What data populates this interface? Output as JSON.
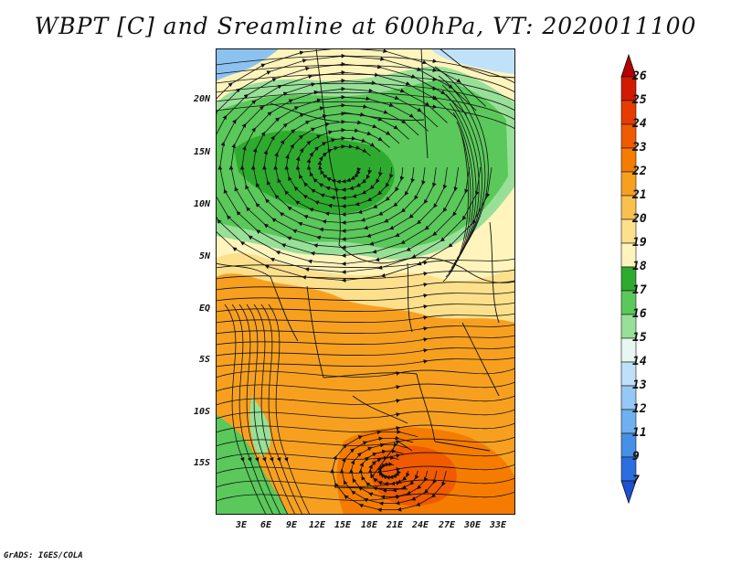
{
  "title": "WBPT [C] and Sreamline at 600hPa, VT: 2020011100",
  "footer": "GrADS: IGES/COLA",
  "lat_labels": [
    "20N",
    "15N",
    "10N",
    "5N",
    "EQ",
    "5S",
    "10S",
    "15S"
  ],
  "lon_labels": [
    "3E",
    "6E",
    "9E",
    "12E",
    "15E",
    "18E",
    "21E",
    "24E",
    "27E",
    "30E",
    "33E"
  ],
  "colorbar": {
    "labels": [
      "26",
      "25",
      "24",
      "23",
      "22",
      "21",
      "20",
      "19",
      "18",
      "17",
      "16",
      "15",
      "14",
      "13",
      "12",
      "11",
      "9",
      "7"
    ],
    "colors": [
      "#b40000",
      "#d21a00",
      "#e63c00",
      "#f05a00",
      "#f57c00",
      "#f7a020",
      "#f9c050",
      "#fce08c",
      "#fff4bc",
      "#2eaa2e",
      "#5ac85a",
      "#98e098",
      "#e6f8f0",
      "#bee0fa",
      "#96c8f5",
      "#6eb0f0",
      "#4690e6",
      "#2a6ee0",
      "#1e50d2"
    ]
  },
  "map": {
    "lon_range": [
      0,
      35
    ],
    "lat_range": [
      -20,
      24.5
    ],
    "field": "WBPT",
    "units": "C",
    "level": "600hPa",
    "colors": {
      "blue": "#8cc2f0",
      "light_blue": "#c0e2f8",
      "pale": "#fff4bc",
      "cream": "#fce08c",
      "yellow": "#f9c050",
      "orange": "#f7a020",
      "dark_orange": "#f57c00",
      "red_orange": "#f05a00",
      "green_light": "#98e098",
      "green": "#5ac85a",
      "green_dark": "#2eaa2e"
    }
  }
}
